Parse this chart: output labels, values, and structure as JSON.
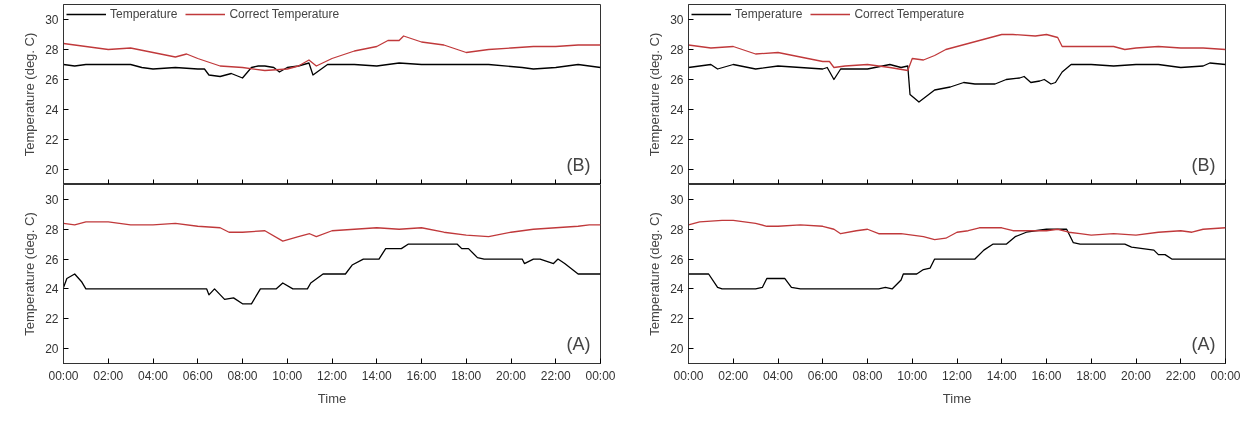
{
  "chart_data": [
    {
      "type": "line",
      "ylabel": "Temperature (deg. C)",
      "annotations": [
        "(B)"
      ],
      "legend": "top left",
      "tick_labels": "y",
      "grid": false,
      "marker": "none",
      "xlim": [
        0,
        24
      ],
      "ylim": [
        19,
        31
      ],
      "yticks": [
        20,
        22,
        24,
        26,
        28,
        30
      ],
      "xticks": [
        {
          "value": 0,
          "label": null
        },
        {
          "value": 2,
          "label": null
        },
        {
          "value": 4,
          "label": null
        },
        {
          "value": 6,
          "label": null
        },
        {
          "value": 8,
          "label": null
        },
        {
          "value": 10,
          "label": null
        },
        {
          "value": 12,
          "label": null
        },
        {
          "value": 14,
          "label": null
        },
        {
          "value": 16,
          "label": null
        },
        {
          "value": 18,
          "label": null
        },
        {
          "value": 20,
          "label": null
        },
        {
          "value": 22,
          "label": null
        },
        {
          "value": 24,
          "label": null
        }
      ],
      "series": [
        {
          "name": "Temperature",
          "color": "#000000",
          "x": [
            0,
            0.5,
            1,
            2,
            3,
            3.5,
            4,
            5,
            6,
            6.3,
            6.5,
            7,
            7.5,
            8,
            8.4,
            8.7,
            9,
            9.4,
            9.65,
            10,
            10.5,
            10.97,
            11.15,
            11.8,
            13,
            14,
            15,
            16,
            17,
            19,
            20.5,
            21,
            22,
            23,
            24
          ],
          "values": [
            27.0,
            26.9,
            27.0,
            27.0,
            27.0,
            26.8,
            26.7,
            26.8,
            26.7,
            26.7,
            26.3,
            26.2,
            26.4,
            26.1,
            26.8,
            26.9,
            26.9,
            26.8,
            26.5,
            26.8,
            26.9,
            27.1,
            26.3,
            27.0,
            27.0,
            26.9,
            27.1,
            27.0,
            27.0,
            27.0,
            26.8,
            26.7,
            26.8,
            27.0,
            26.8
          ]
        },
        {
          "name": "Correct Temperature",
          "color": "#c0393b",
          "x": [
            0,
            0.5,
            1,
            2,
            3,
            4,
            5,
            5.5,
            6,
            7,
            8,
            9,
            10,
            10.5,
            10.97,
            11.3,
            12,
            13,
            14,
            14.5,
            15,
            15.2,
            16,
            17,
            18,
            19,
            20,
            21,
            22,
            23,
            24
          ],
          "values": [
            28.4,
            28.3,
            28.2,
            28.0,
            28.1,
            27.8,
            27.5,
            27.7,
            27.4,
            26.9,
            26.8,
            26.6,
            26.7,
            26.9,
            27.3,
            26.9,
            27.4,
            27.9,
            28.2,
            28.6,
            28.6,
            28.9,
            28.5,
            28.3,
            27.8,
            28.0,
            28.1,
            28.2,
            28.2,
            28.3,
            28.3
          ]
        }
      ]
    },
    {
      "type": "line",
      "ylabel": "Temperature (deg. C)",
      "annotations": [
        "(B)"
      ],
      "legend": "top left",
      "tick_labels": "y",
      "grid": false,
      "marker": "none",
      "xlim": [
        0,
        24
      ],
      "ylim": [
        19,
        31
      ],
      "yticks": [
        20,
        22,
        24,
        26,
        28,
        30
      ],
      "xticks": [
        {
          "value": 0,
          "label": null
        },
        {
          "value": 2,
          "label": null
        },
        {
          "value": 4,
          "label": null
        },
        {
          "value": 6,
          "label": null
        },
        {
          "value": 8,
          "label": null
        },
        {
          "value": 10,
          "label": null
        },
        {
          "value": 12,
          "label": null
        },
        {
          "value": 14,
          "label": null
        },
        {
          "value": 16,
          "label": null
        },
        {
          "value": 18,
          "label": null
        },
        {
          "value": 20,
          "label": null
        },
        {
          "value": 22,
          "label": null
        },
        {
          "value": 24,
          "label": null
        }
      ],
      "series": [
        {
          "name": "Temperature",
          "color": "#000000",
          "x": [
            0,
            1,
            1.3,
            2,
            3,
            4,
            5,
            6,
            6.2,
            6.5,
            6.8,
            8,
            9,
            9.5,
            9.8,
            9.9,
            10.3,
            11.0,
            11.7,
            12.3,
            12.8,
            13.7,
            14.2,
            14.8,
            15.0,
            15.3,
            15.7,
            15.9,
            16.2,
            16.4,
            16.7,
            17.1,
            18,
            19,
            20,
            21,
            22,
            23,
            23.3,
            24
          ],
          "values": [
            26.8,
            27.0,
            26.7,
            27.0,
            26.7,
            26.9,
            26.8,
            26.7,
            26.8,
            26.0,
            26.7,
            26.7,
            27.0,
            26.8,
            26.9,
            25.0,
            24.5,
            25.3,
            25.5,
            25.8,
            25.7,
            25.7,
            26.0,
            26.1,
            26.2,
            25.8,
            25.9,
            26.0,
            25.7,
            25.8,
            26.5,
            27.0,
            27.0,
            26.9,
            27.0,
            27.0,
            26.8,
            26.9,
            27.1,
            27.0
          ]
        },
        {
          "name": "Correct Temperature",
          "color": "#c0393b",
          "x": [
            0,
            1,
            2,
            3,
            4,
            5,
            6,
            6.3,
            6.5,
            7,
            8,
            9,
            9.8,
            10.0,
            10.5,
            11,
            11.5,
            12.5,
            13.5,
            14,
            14.5,
            15.5,
            16,
            16.5,
            16.7,
            19,
            19.5,
            20,
            21,
            22,
            23,
            24
          ],
          "values": [
            28.3,
            28.1,
            28.2,
            27.7,
            27.8,
            27.5,
            27.2,
            27.2,
            26.8,
            26.9,
            27.0,
            26.8,
            26.6,
            27.4,
            27.3,
            27.6,
            28.0,
            28.4,
            28.8,
            29.0,
            29.0,
            28.9,
            29.0,
            28.8,
            28.2,
            28.2,
            28.0,
            28.1,
            28.2,
            28.1,
            28.1,
            28.0
          ]
        }
      ]
    },
    {
      "type": "line",
      "ylabel": "Temperature (deg. C)",
      "xlabel": "Time",
      "annotations": [
        "(A)"
      ],
      "grid": false,
      "marker": "none",
      "xlim": [
        0,
        24
      ],
      "ylim": [
        19,
        31
      ],
      "yticks": [
        20,
        22,
        24,
        26,
        28,
        30
      ],
      "xticks": [
        {
          "value": 0,
          "label": "00:00"
        },
        {
          "value": 2,
          "label": "02:00"
        },
        {
          "value": 4,
          "label": "04:00"
        },
        {
          "value": 6,
          "label": "06:00"
        },
        {
          "value": 8,
          "label": "08:00"
        },
        {
          "value": 10,
          "label": "10:00"
        },
        {
          "value": 12,
          "label": "12:00"
        },
        {
          "value": 14,
          "label": "14:00"
        },
        {
          "value": 16,
          "label": "16:00"
        },
        {
          "value": 18,
          "label": "18:00"
        },
        {
          "value": 20,
          "label": "20:00"
        },
        {
          "value": 22,
          "label": "22:00"
        },
        {
          "value": 24,
          "label": "00:00"
        }
      ],
      "series": [
        {
          "color": "#000000",
          "x": [
            0,
            0.15,
            0.5,
            0.8,
            1.0,
            6.4,
            6.5,
            6.75,
            7.2,
            7.6,
            8.0,
            8.4,
            8.8,
            9.5,
            9.8,
            10.25,
            10.9,
            11.05,
            11.6,
            12.6,
            12.9,
            13.4,
            14.1,
            14.4,
            15.1,
            15.4,
            17.6,
            17.8,
            18.1,
            18.5,
            18.8,
            20.5,
            20.6,
            21.0,
            21.3,
            21.9,
            22.1,
            22.4,
            23.0,
            24
          ],
          "values": [
            24.1,
            24.7,
            25.0,
            24.5,
            24.0,
            24.0,
            23.6,
            24.0,
            23.3,
            23.4,
            23.0,
            23.0,
            24.0,
            24.0,
            24.4,
            24.0,
            24.0,
            24.4,
            25.0,
            25.0,
            25.6,
            26.0,
            26.0,
            26.7,
            26.7,
            27.0,
            27.0,
            26.7,
            26.7,
            26.1,
            26.0,
            26.0,
            25.7,
            26.0,
            26.0,
            25.7,
            26.0,
            25.7,
            25.0,
            25.0
          ]
        },
        {
          "color": "#c0393b",
          "x": [
            0,
            0.5,
            1,
            2,
            3,
            4,
            5,
            6,
            7,
            7.4,
            8,
            9,
            9.8,
            10.5,
            11,
            11.3,
            12,
            13,
            14,
            15,
            16,
            17,
            18,
            19,
            20,
            21,
            22,
            23,
            23.5,
            24
          ],
          "values": [
            28.4,
            28.3,
            28.5,
            28.5,
            28.3,
            28.3,
            28.4,
            28.2,
            28.1,
            27.8,
            27.8,
            27.9,
            27.2,
            27.5,
            27.7,
            27.5,
            27.9,
            28.0,
            28.1,
            28.0,
            28.1,
            27.8,
            27.6,
            27.5,
            27.8,
            28.0,
            28.1,
            28.2,
            28.3,
            28.3
          ]
        }
      ]
    },
    {
      "type": "line",
      "ylabel": "Temperature (deg. C)",
      "xlabel": "Time",
      "annotations": [
        "(A)"
      ],
      "grid": false,
      "marker": "none",
      "xlim": [
        0,
        24
      ],
      "ylim": [
        19,
        31
      ],
      "yticks": [
        20,
        22,
        24,
        26,
        28,
        30
      ],
      "xticks": [
        {
          "value": 0,
          "label": "00:00"
        },
        {
          "value": 2,
          "label": "02:00"
        },
        {
          "value": 4,
          "label": "04:00"
        },
        {
          "value": 6,
          "label": "06:00"
        },
        {
          "value": 8,
          "label": "08:00"
        },
        {
          "value": 10,
          "label": "10:00"
        },
        {
          "value": 12,
          "label": "12:00"
        },
        {
          "value": 14,
          "label": "14:00"
        },
        {
          "value": 16,
          "label": "16:00"
        },
        {
          "value": 18,
          "label": "18:00"
        },
        {
          "value": 20,
          "label": "20:00"
        },
        {
          "value": 22,
          "label": "22:00"
        },
        {
          "value": 24,
          "label": "00:00"
        }
      ],
      "series": [
        {
          "color": "#000000",
          "x": [
            0,
            0.9,
            1.3,
            1.5,
            3.0,
            3.3,
            3.5,
            4.3,
            4.6,
            5,
            8.5,
            8.8,
            9.1,
            9.5,
            9.6,
            10.2,
            10.5,
            10.8,
            11.0,
            12.8,
            13.2,
            13.6,
            14.2,
            14.6,
            15.1,
            15.5,
            16,
            16.9,
            17.2,
            17.5,
            19.5,
            19.8,
            20.3,
            20.8,
            21.0,
            21.3,
            21.6,
            24
          ],
          "values": [
            25.0,
            25.0,
            24.1,
            24.0,
            24.0,
            24.1,
            24.7,
            24.7,
            24.1,
            24.0,
            24.0,
            24.1,
            24.0,
            24.6,
            25.0,
            25.0,
            25.3,
            25.4,
            26.0,
            26.0,
            26.6,
            27.0,
            27.0,
            27.5,
            27.8,
            27.9,
            28.0,
            28.0,
            27.1,
            27.0,
            27.0,
            26.8,
            26.7,
            26.6,
            26.3,
            26.3,
            26.0,
            26.0
          ]
        },
        {
          "color": "#c0393b",
          "x": [
            0,
            0.5,
            1.5,
            2,
            3,
            3.5,
            4,
            5,
            6,
            6.5,
            6.8,
            7.5,
            8,
            8.5,
            9,
            9.5,
            10,
            10.5,
            11,
            11.5,
            12,
            12.5,
            13,
            14,
            14.5,
            15,
            16,
            16.5,
            17,
            17.5,
            18,
            19,
            20,
            21,
            22,
            22.5,
            23,
            24
          ],
          "values": [
            28.3,
            28.5,
            28.6,
            28.6,
            28.4,
            28.2,
            28.2,
            28.3,
            28.2,
            28.0,
            27.7,
            27.9,
            28.0,
            27.7,
            27.7,
            27.7,
            27.6,
            27.5,
            27.3,
            27.4,
            27.8,
            27.9,
            28.1,
            28.1,
            27.9,
            27.9,
            27.9,
            28.0,
            27.8,
            27.7,
            27.6,
            27.7,
            27.6,
            27.8,
            27.9,
            27.8,
            28.0,
            28.1
          ]
        }
      ]
    }
  ]
}
